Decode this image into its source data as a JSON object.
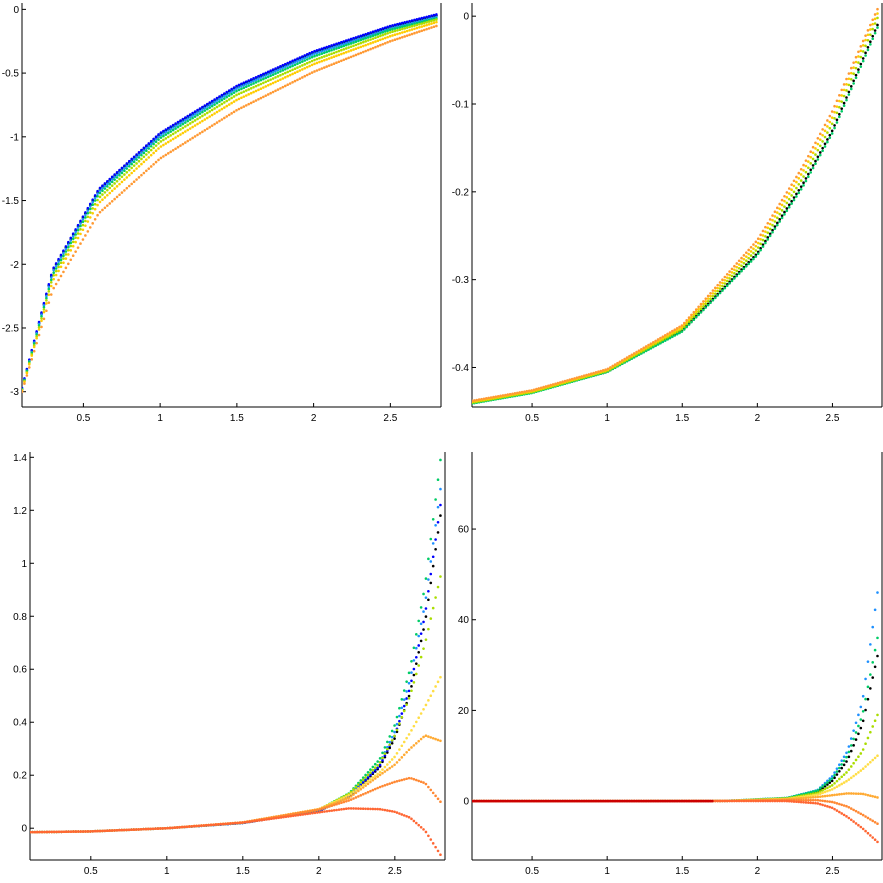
{
  "chart_data": [
    {
      "type": "scatter",
      "xlim": [
        0.1,
        2.83
      ],
      "ylim": [
        -3.12,
        0.05
      ],
      "x_ticks": [
        "0.5",
        "1",
        "1.5",
        "2",
        "2.5"
      ],
      "y_ticks": [
        "0",
        "-0.5",
        "-1",
        "-1.5",
        "-2",
        "-2.5",
        "-3"
      ],
      "grid": false,
      "series": [
        {
          "color": "#000000",
          "x": [
            0.1,
            0.3,
            0.6,
            1.0,
            1.5,
            2.0,
            2.5,
            2.8
          ],
          "y": [
            -2.98,
            -2.05,
            -1.42,
            -0.98,
            -0.61,
            -0.34,
            -0.14,
            -0.05
          ]
        },
        {
          "color": "#0000ff",
          "x": [
            0.1,
            0.3,
            0.6,
            1.0,
            1.5,
            2.0,
            2.5,
            2.8
          ],
          "y": [
            -2.97,
            -2.04,
            -1.41,
            -0.97,
            -0.6,
            -0.33,
            -0.13,
            -0.04
          ]
        },
        {
          "color": "#1e90ff",
          "x": [
            0.1,
            0.3,
            0.6,
            1.0,
            1.5,
            2.0,
            2.5,
            2.8
          ],
          "y": [
            -2.98,
            -2.06,
            -1.43,
            -0.99,
            -0.62,
            -0.35,
            -0.15,
            -0.06
          ]
        },
        {
          "color": "#00cc66",
          "x": [
            0.1,
            0.3,
            0.6,
            1.0,
            1.5,
            2.0,
            2.5,
            2.8
          ],
          "y": [
            -2.98,
            -2.08,
            -1.45,
            -1.01,
            -0.64,
            -0.37,
            -0.16,
            -0.07
          ]
        },
        {
          "color": "#aadd00",
          "x": [
            0.1,
            0.3,
            0.6,
            1.0,
            1.5,
            2.0,
            2.5,
            2.8
          ],
          "y": [
            -2.99,
            -2.1,
            -1.48,
            -1.04,
            -0.67,
            -0.4,
            -0.18,
            -0.08
          ]
        },
        {
          "color": "#ffcc00",
          "x": [
            0.1,
            0.3,
            0.6,
            1.0,
            1.5,
            2.0,
            2.5,
            2.8
          ],
          "y": [
            -2.99,
            -2.13,
            -1.52,
            -1.08,
            -0.71,
            -0.43,
            -0.21,
            -0.1
          ]
        },
        {
          "color": "#ff9933",
          "x": [
            0.1,
            0.3,
            0.6,
            1.0,
            1.5,
            2.0,
            2.5,
            2.8
          ],
          "y": [
            -3.0,
            -2.2,
            -1.6,
            -1.17,
            -0.79,
            -0.49,
            -0.25,
            -0.13
          ]
        }
      ]
    },
    {
      "type": "scatter",
      "xlim": [
        0.1,
        2.83
      ],
      "ylim": [
        -0.445,
        0.015
      ],
      "x_ticks": [
        "0.5",
        "1",
        "1.5",
        "2",
        "2.5"
      ],
      "y_ticks": [
        "0",
        "-0.1",
        "-0.2",
        "-0.3",
        "-0.4"
      ],
      "grid": false,
      "series": [
        {
          "color": "#000000",
          "x": [
            0.1,
            0.5,
            1.0,
            1.5,
            2.0,
            2.3,
            2.5,
            2.7,
            2.8
          ],
          "y": [
            -0.44,
            -0.428,
            -0.405,
            -0.358,
            -0.27,
            -0.192,
            -0.13,
            -0.05,
            -0.01
          ]
        },
        {
          "color": "#00cc66",
          "x": [
            0.1,
            0.5,
            1.0,
            1.5,
            2.0,
            2.3,
            2.5,
            2.7,
            2.8
          ],
          "y": [
            -0.441,
            -0.429,
            -0.405,
            -0.359,
            -0.272,
            -0.195,
            -0.133,
            -0.053,
            -0.013
          ]
        },
        {
          "color": "#aadd00",
          "x": [
            0.1,
            0.5,
            1.0,
            1.5,
            2.0,
            2.3,
            2.5,
            2.7,
            2.8
          ],
          "y": [
            -0.44,
            -0.428,
            -0.404,
            -0.356,
            -0.265,
            -0.185,
            -0.122,
            -0.042,
            -0.002
          ]
        },
        {
          "color": "#ffcc00",
          "x": [
            0.1,
            0.5,
            1.0,
            1.5,
            2.0,
            2.3,
            2.5,
            2.7,
            2.8
          ],
          "y": [
            -0.439,
            -0.427,
            -0.403,
            -0.354,
            -0.26,
            -0.178,
            -0.115,
            -0.035,
            0.003
          ]
        },
        {
          "color": "#ff9933",
          "x": [
            0.1,
            0.5,
            1.0,
            1.5,
            2.0,
            2.3,
            2.5,
            2.7,
            2.8
          ],
          "y": [
            -0.438,
            -0.426,
            -0.402,
            -0.352,
            -0.255,
            -0.172,
            -0.108,
            -0.03,
            0.008
          ]
        }
      ]
    },
    {
      "type": "scatter",
      "xlim": [
        0.1,
        2.83
      ],
      "ylim": [
        -0.12,
        1.42
      ],
      "x_ticks": [
        "0.5",
        "1",
        "1.5",
        "2",
        "2.5"
      ],
      "y_ticks": [
        "0",
        "0.2",
        "0.4",
        "0.6",
        "0.8",
        "1",
        "1.2",
        "1.4"
      ],
      "grid": false,
      "series": [
        {
          "color": "#000000",
          "x": [
            0.1,
            0.5,
            1.0,
            1.5,
            2.0,
            2.2,
            2.4,
            2.5,
            2.6,
            2.7,
            2.8
          ],
          "y": [
            -0.015,
            -0.012,
            0.0,
            0.02,
            0.065,
            0.12,
            0.23,
            0.34,
            0.51,
            0.78,
            1.18
          ]
        },
        {
          "color": "#0000ff",
          "x": [
            0.1,
            0.5,
            1.0,
            1.5,
            2.0,
            2.2,
            2.4,
            2.5,
            2.6,
            2.7,
            2.8
          ],
          "y": [
            -0.015,
            -0.012,
            0.0,
            0.02,
            0.066,
            0.122,
            0.235,
            0.35,
            0.53,
            0.81,
            1.22
          ]
        },
        {
          "color": "#1e90ff",
          "x": [
            0.1,
            0.5,
            1.0,
            1.5,
            2.0,
            2.2,
            2.4,
            2.5,
            2.6,
            2.7,
            2.8
          ],
          "y": [
            -0.015,
            -0.012,
            0.0,
            0.02,
            0.068,
            0.126,
            0.245,
            0.365,
            0.56,
            0.85,
            1.28
          ]
        },
        {
          "color": "#00cc66",
          "x": [
            0.1,
            0.5,
            1.0,
            1.5,
            2.0,
            2.2,
            2.4,
            2.5,
            2.6,
            2.7,
            2.8
          ],
          "y": [
            -0.015,
            -0.012,
            0.0,
            0.021,
            0.07,
            0.132,
            0.26,
            0.39,
            0.6,
            0.92,
            1.39
          ]
        },
        {
          "color": "#aadd00",
          "x": [
            0.1,
            0.5,
            1.0,
            1.5,
            2.0,
            2.2,
            2.4,
            2.5,
            2.6,
            2.7,
            2.8
          ],
          "y": [
            -0.015,
            -0.012,
            0.0,
            0.021,
            0.07,
            0.13,
            0.245,
            0.35,
            0.5,
            0.7,
            0.95
          ]
        },
        {
          "color": "#ffdd44",
          "x": [
            0.1,
            0.5,
            1.0,
            1.5,
            2.0,
            2.2,
            2.4,
            2.5,
            2.6,
            2.7,
            2.8
          ],
          "y": [
            -0.015,
            -0.012,
            0.0,
            0.022,
            0.072,
            0.125,
            0.21,
            0.27,
            0.36,
            0.46,
            0.57
          ]
        },
        {
          "color": "#ffaa33",
          "x": [
            0.1,
            0.5,
            1.0,
            1.5,
            2.0,
            2.2,
            2.4,
            2.5,
            2.6,
            2.7,
            2.8
          ],
          "y": [
            -0.015,
            -0.012,
            0.0,
            0.022,
            0.072,
            0.115,
            0.2,
            0.24,
            0.3,
            0.35,
            0.33
          ]
        },
        {
          "color": "#ff8833",
          "x": [
            0.1,
            0.5,
            1.0,
            1.5,
            2.0,
            2.2,
            2.4,
            2.5,
            2.6,
            2.7,
            2.8
          ],
          "y": [
            -0.015,
            -0.012,
            0.0,
            0.022,
            0.07,
            0.105,
            0.155,
            0.175,
            0.19,
            0.17,
            0.1
          ]
        },
        {
          "color": "#ff6633",
          "x": [
            0.1,
            0.5,
            1.0,
            1.5,
            2.0,
            2.2,
            2.4,
            2.5,
            2.6,
            2.7,
            2.8
          ],
          "y": [
            -0.015,
            -0.012,
            0.0,
            0.021,
            0.06,
            0.075,
            0.072,
            0.062,
            0.04,
            -0.01,
            -0.1
          ]
        }
      ]
    },
    {
      "type": "scatter",
      "xlim": [
        0.1,
        2.83
      ],
      "ylim": [
        -13,
        77
      ],
      "x_ticks": [
        "0.5",
        "1",
        "1.5",
        "2",
        "2.5"
      ],
      "y_ticks": [
        "0",
        "20",
        "40",
        "60"
      ],
      "grid": false,
      "series": [
        {
          "color": "#000000",
          "x": [
            0.1,
            1.0,
            1.8,
            2.2,
            2.4,
            2.5,
            2.6,
            2.7,
            2.8
          ],
          "y": [
            0,
            0,
            0.05,
            0.6,
            2.0,
            4.5,
            9.0,
            17.0,
            32.0
          ]
        },
        {
          "color": "#1e90ff",
          "x": [
            0.1,
            1.0,
            1.8,
            2.2,
            2.4,
            2.5,
            2.6,
            2.7,
            2.8
          ],
          "y": [
            0,
            0,
            0.05,
            0.7,
            2.4,
            5.5,
            11.0,
            22.0,
            46.0
          ]
        },
        {
          "color": "#00cc66",
          "x": [
            0.1,
            1.0,
            1.8,
            2.2,
            2.4,
            2.5,
            2.6,
            2.7,
            2.8
          ],
          "y": [
            0,
            0,
            0.05,
            0.7,
            2.3,
            5.0,
            10.0,
            19.0,
            36.0
          ]
        },
        {
          "color": "#aadd00",
          "x": [
            0.1,
            1.0,
            1.8,
            2.2,
            2.4,
            2.5,
            2.6,
            2.7,
            2.8
          ],
          "y": [
            0,
            0,
            0.05,
            0.6,
            1.8,
            3.5,
            6.5,
            11.0,
            19.0
          ]
        },
        {
          "color": "#ffdd44",
          "x": [
            0.1,
            1.0,
            1.8,
            2.2,
            2.4,
            2.5,
            2.6,
            2.7,
            2.8
          ],
          "y": [
            0,
            0,
            0.05,
            0.5,
            1.4,
            2.6,
            4.5,
            7.0,
            10.0
          ]
        },
        {
          "color": "#ffaa33",
          "x": [
            0.1,
            1.0,
            1.8,
            2.2,
            2.4,
            2.5,
            2.6,
            2.7,
            2.8
          ],
          "y": [
            0,
            0,
            0.05,
            0.4,
            0.9,
            1.3,
            1.7,
            1.6,
            0.8
          ]
        },
        {
          "color": "#ff8833",
          "x": [
            0.1,
            1.0,
            1.8,
            2.2,
            2.4,
            2.5,
            2.6,
            2.7,
            2.8
          ],
          "y": [
            0,
            0,
            0.03,
            0.2,
            0.2,
            -0.2,
            -1.2,
            -3.0,
            -5.0
          ]
        },
        {
          "color": "#ff6633",
          "x": [
            0.1,
            1.0,
            1.8,
            2.2,
            2.4,
            2.5,
            2.6,
            2.7,
            2.8
          ],
          "y": [
            0,
            0,
            0.02,
            0.0,
            -0.5,
            -1.5,
            -3.5,
            -6.0,
            -9.0
          ]
        },
        {
          "color": "#cc0000",
          "x": [
            0.1,
            0.5,
            1.0,
            1.5,
            1.7
          ],
          "y": [
            0,
            0,
            0,
            0,
            0
          ]
        }
      ]
    }
  ]
}
